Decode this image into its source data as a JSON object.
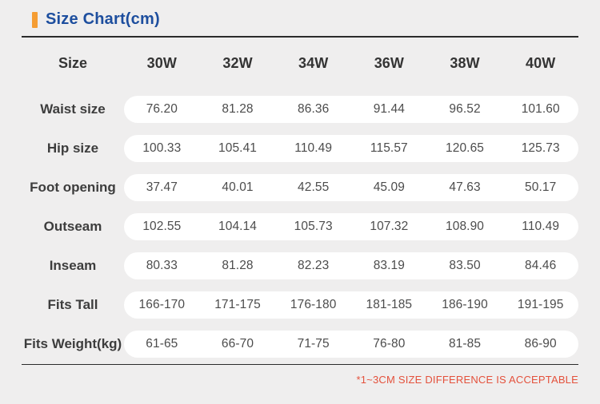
{
  "page": {
    "title": "Size Chart(cm)",
    "footer_note": "*1~3CM SIZE DIFFERENCE IS ACCEPTABLE"
  },
  "colors": {
    "background": "#efeeee",
    "row_pill": "#ffffff",
    "title_blue": "#1d4e9e",
    "accent_orange": "#f59d33",
    "divider_dark": "#2b2b2b",
    "label_text": "#3d3d3d",
    "value_text": "#4c4c4c",
    "note_red": "#e4513c"
  },
  "chart_data": {
    "type": "table",
    "title": "Size Chart(cm)",
    "unit": "cm",
    "columns": [
      "Size",
      "30W",
      "32W",
      "34W",
      "36W",
      "38W",
      "40W"
    ],
    "rows": [
      {
        "label": "Waist size",
        "values": [
          "76.20",
          "81.28",
          "86.36",
          "91.44",
          "96.52",
          "101.60"
        ]
      },
      {
        "label": "Hip size",
        "values": [
          "100.33",
          "105.41",
          "110.49",
          "115.57",
          "120.65",
          "125.73"
        ]
      },
      {
        "label": "Foot opening",
        "values": [
          "37.47",
          "40.01",
          "42.55",
          "45.09",
          "47.63",
          "50.17"
        ]
      },
      {
        "label": "Outseam",
        "values": [
          "102.55",
          "104.14",
          "105.73",
          "107.32",
          "108.90",
          "110.49"
        ]
      },
      {
        "label": "Inseam",
        "values": [
          "80.33",
          "81.28",
          "82.23",
          "83.19",
          "83.50",
          "84.46"
        ]
      },
      {
        "label": "Fits Tall",
        "values": [
          "166-170",
          "171-175",
          "176-180",
          "181-185",
          "186-190",
          "191-195"
        ]
      },
      {
        "label": "Fits Weight(kg)",
        "values": [
          "61-65",
          "66-70",
          "71-75",
          "76-80",
          "81-85",
          "86-90"
        ]
      }
    ],
    "layout": {
      "grid": false,
      "row_style": "white rounded pill per data row",
      "note_position": "bottom-right"
    }
  }
}
